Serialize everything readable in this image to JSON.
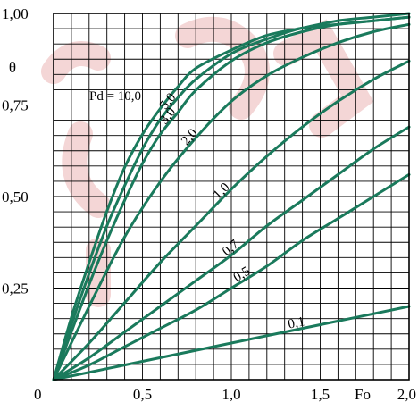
{
  "chart_data": {
    "type": "line",
    "title": "",
    "xlabel": "Fo",
    "ylabel": "θ",
    "xlim": [
      0,
      2.0
    ],
    "ylim": [
      0,
      1.0
    ],
    "grid": true,
    "x_ticks": [
      "0,5",
      "1,0",
      "1,5",
      "2,0"
    ],
    "y_ticks": [
      "0,25",
      "0,50",
      "0,75",
      "1,00"
    ],
    "origin_label": "0",
    "series_label_prefix": "Pd = ",
    "colors": {
      "curve": "#1a7a5c",
      "grid": "#000000",
      "axis": "#000000"
    },
    "series": [
      {
        "name": "10,0",
        "x": [
          0,
          0.1,
          0.2,
          0.3,
          0.4,
          0.5,
          0.6,
          0.7,
          0.8,
          1.0,
          1.2,
          1.4,
          1.6,
          1.8,
          2.0
        ],
        "y": [
          0,
          0.17,
          0.32,
          0.46,
          0.58,
          0.67,
          0.74,
          0.8,
          0.85,
          0.9,
          0.94,
          0.96,
          0.98,
          0.99,
          1.0
        ]
      },
      {
        "name": "5,0",
        "x": [
          0,
          0.1,
          0.2,
          0.3,
          0.4,
          0.5,
          0.6,
          0.7,
          0.8,
          1.0,
          1.2,
          1.4,
          1.6,
          1.8,
          2.0
        ],
        "y": [
          0,
          0.15,
          0.29,
          0.42,
          0.53,
          0.63,
          0.71,
          0.77,
          0.82,
          0.89,
          0.93,
          0.96,
          0.97,
          0.98,
          0.99
        ]
      },
      {
        "name": "3,0",
        "x": [
          0,
          0.1,
          0.2,
          0.3,
          0.4,
          0.5,
          0.6,
          0.7,
          0.8,
          1.0,
          1.2,
          1.4,
          1.6,
          1.8,
          2.0
        ],
        "y": [
          0,
          0.13,
          0.26,
          0.38,
          0.49,
          0.59,
          0.67,
          0.73,
          0.79,
          0.87,
          0.92,
          0.95,
          0.97,
          0.98,
          0.99
        ]
      },
      {
        "name": "2,0",
        "x": [
          0,
          0.2,
          0.4,
          0.6,
          0.8,
          1.0,
          1.2,
          1.4,
          1.6,
          1.8,
          2.0
        ],
        "y": [
          0,
          0.2,
          0.39,
          0.54,
          0.66,
          0.76,
          0.83,
          0.88,
          0.92,
          0.95,
          0.97
        ]
      },
      {
        "name": "1,0",
        "x": [
          0,
          0.2,
          0.4,
          0.6,
          0.8,
          1.0,
          1.2,
          1.4,
          1.6,
          1.8,
          2.0
        ],
        "y": [
          0,
          0.1,
          0.21,
          0.32,
          0.42,
          0.52,
          0.61,
          0.69,
          0.76,
          0.82,
          0.87
        ]
      },
      {
        "name": "0,7",
        "x": [
          0,
          0.2,
          0.4,
          0.6,
          0.8,
          1.0,
          1.2,
          1.4,
          1.6,
          1.8,
          2.0
        ],
        "y": [
          0,
          0.06,
          0.13,
          0.2,
          0.27,
          0.34,
          0.42,
          0.49,
          0.56,
          0.63,
          0.69
        ]
      },
      {
        "name": "0,5",
        "x": [
          0,
          0.2,
          0.4,
          0.6,
          0.8,
          1.0,
          1.2,
          1.4,
          1.6,
          1.8,
          2.0
        ],
        "y": [
          0,
          0.04,
          0.09,
          0.14,
          0.19,
          0.25,
          0.31,
          0.38,
          0.44,
          0.5,
          0.56
        ]
      },
      {
        "name": "0,1",
        "x": [
          0,
          0.5,
          1.0,
          1.5,
          2.0
        ],
        "y": [
          0,
          0.05,
          0.1,
          0.15,
          0.2
        ]
      }
    ]
  }
}
